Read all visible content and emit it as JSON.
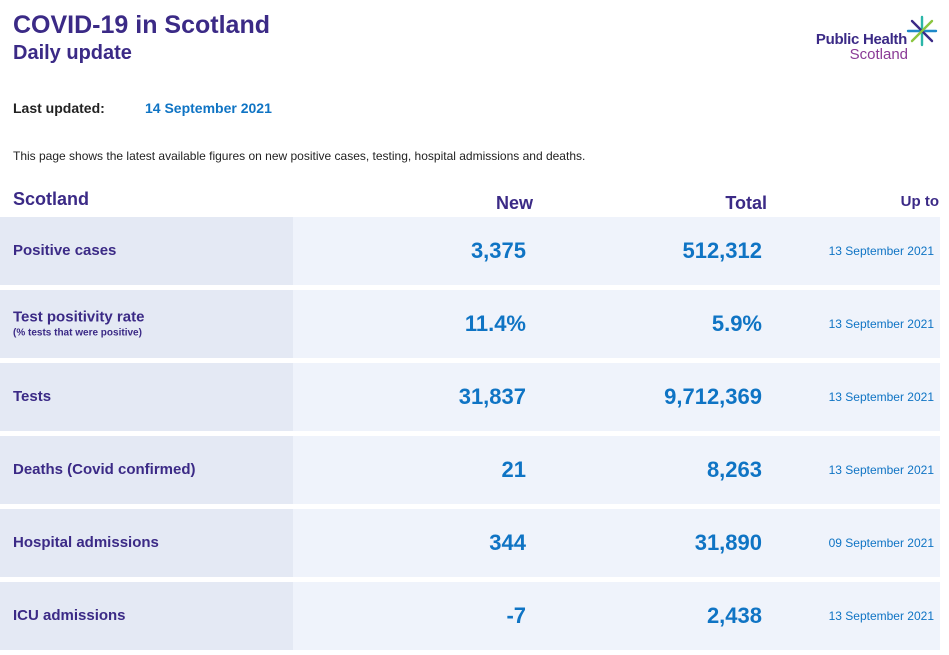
{
  "header": {
    "title": "COVID-19 in Scotland",
    "subtitle": "Daily update"
  },
  "logo": {
    "line1": "Public Health",
    "line2": "Scotland",
    "icon": "star-burst-icon"
  },
  "updated": {
    "label": "Last updated:",
    "value": "14 September 2021"
  },
  "intro": "This page shows the latest available figures on new positive cases, testing, hospital admissions and deaths.",
  "table": {
    "columns": {
      "region": "Scotland",
      "new": "New",
      "total": "Total",
      "up_to": "Up to"
    },
    "rows": [
      {
        "label": "Positive cases",
        "sublabel": "",
        "new": "3,375",
        "total": "512,312",
        "up_to": "13 September 2021"
      },
      {
        "label": "Test positivity rate",
        "sublabel": "(% tests that were positive)",
        "new": "11.4%",
        "total": "5.9%",
        "up_to": "13 September 2021"
      },
      {
        "label": "Tests",
        "sublabel": "",
        "new": "31,837",
        "total": "9,712,369",
        "up_to": "13 September 2021"
      },
      {
        "label": "Deaths (Covid confirmed)",
        "sublabel": "",
        "new": "21",
        "total": "8,263",
        "up_to": "13 September 2021"
      },
      {
        "label": "Hospital admissions",
        "sublabel": "",
        "new": "344",
        "total": "31,890",
        "up_to": "09 September 2021"
      },
      {
        "label": "ICU admissions",
        "sublabel": "",
        "new": "-7",
        "total": "2,438",
        "up_to": "13 September 2021"
      }
    ]
  },
  "colors": {
    "heading": "#3b2a86",
    "value": "#0f74c4",
    "row_bg": "#eff3fb",
    "label_bg": "#e4e9f4",
    "logo_accent": "#8a3a96"
  }
}
